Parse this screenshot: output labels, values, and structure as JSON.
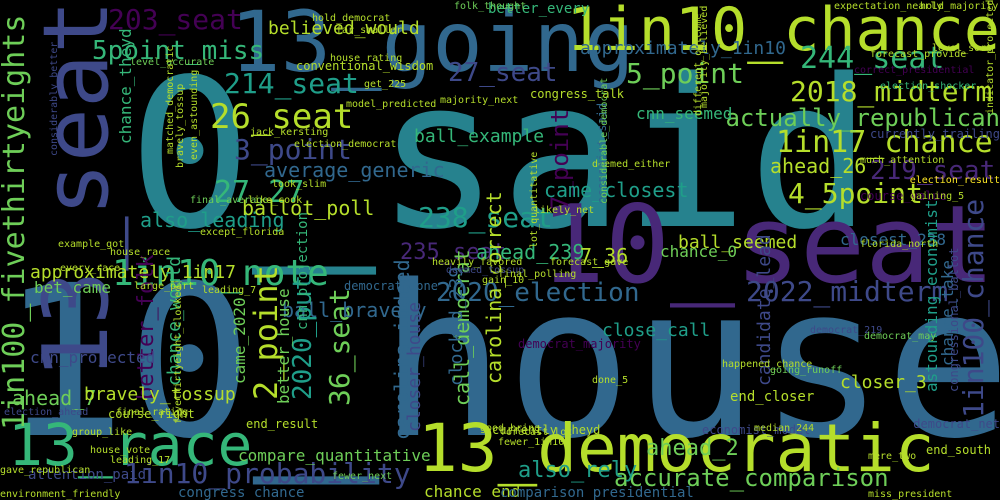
{
  "palette": {
    "background": "#000000",
    "colors": [
      "#440154",
      "#482878",
      "#3e4989",
      "#31688e",
      "#26828e",
      "#1f9e89",
      "#35b779",
      "#6ece58",
      "#b5de2b",
      "#fde725"
    ]
  },
  "words": [
    {
      "text": "0_said",
      "color": "#26828e"
    },
    {
      "text": "10_house",
      "color": "#31688e"
    },
    {
      "text": "10_seat",
      "color": "#482878"
    },
    {
      "text": "13_going",
      "color": "#31688e"
    },
    {
      "text": "1in10_chance",
      "color": "#b5de2b"
    },
    {
      "text": "13_democratic",
      "color": "#b5de2b"
    },
    {
      "text": "13_race",
      "color": "#35b779"
    },
    {
      "text": "13_seat",
      "color": "#3e4989"
    },
    {
      "text": "1in10_note",
      "color": "#35b779"
    },
    {
      "text": "2020_election",
      "color": "#31688e"
    },
    {
      "text": "2022_midterm",
      "color": "#3e4989"
    },
    {
      "text": "1in100_fivethirtyeights",
      "color": "#6ece58"
    },
    {
      "text": "1in100_chance",
      "color": "#3e4989"
    },
    {
      "text": "1in10_probability",
      "color": "#3e4989"
    },
    {
      "text": "accurate_comparison",
      "color": "#6ece58"
    },
    {
      "text": "2018_midterm",
      "color": "#b5de2b"
    },
    {
      "text": "1in17_chance",
      "color": "#b5de2b"
    },
    {
      "text": "244_seat",
      "color": "#35b779"
    },
    {
      "text": "5_point",
      "color": "#6ece58"
    },
    {
      "text": "27_seat",
      "color": "#3e4989"
    },
    {
      "text": "203_seat",
      "color": "#440154"
    },
    {
      "text": "5point_miss",
      "color": "#35b779"
    },
    {
      "text": "214_seat",
      "color": "#1f9e89"
    },
    {
      "text": "26_seat",
      "color": "#b5de2b"
    },
    {
      "text": "3_point",
      "color": "#3e4989"
    },
    {
      "text": "219_seat",
      "color": "#482878"
    },
    {
      "text": "4_5point",
      "color": "#b5de2b"
    },
    {
      "text": "238_seat",
      "color": "#1f9e89"
    },
    {
      "text": "235_seat",
      "color": "#482878"
    },
    {
      "text": "36_seat",
      "color": "#6ece58"
    },
    {
      "text": "2020_put",
      "color": "#1f9e89"
    },
    {
      "text": "2_point",
      "color": "#b5de2b"
    },
    {
      "text": "27 27",
      "color": "#35b779"
    },
    {
      "text": "actually_republican",
      "color": "#6ece58"
    },
    {
      "text": "approximately_1in10",
      "color": "#31688e"
    },
    {
      "text": "approximately_1in17",
      "color": "#b5de2b"
    },
    {
      "text": "ahead_26",
      "color": "#b5de2b"
    },
    {
      "text": "ahead_239",
      "color": "#35b779"
    },
    {
      "text": "ahead_2",
      "color": "#6ece58"
    },
    {
      "text": "ahead_7",
      "color": "#6ece58"
    },
    {
      "text": "also_leading",
      "color": "#1f9e89"
    },
    {
      "text": "also_rely",
      "color": "#1f9e89"
    },
    {
      "text": "7_36",
      "color": "#b5de2b"
    },
    {
      "text": "7_point",
      "color": "#440154"
    },
    {
      "text": "ball_bravely",
      "color": "#31688e"
    },
    {
      "text": "ball_example",
      "color": "#35b779"
    },
    {
      "text": "ball_seemed",
      "color": "#b5de2b"
    },
    {
      "text": "ballot_poll",
      "color": "#b5de2b"
    },
    {
      "text": "average_generic",
      "color": "#31688e"
    },
    {
      "text": "believed_would",
      "color": "#b5de2b"
    },
    {
      "text": "bet_came",
      "color": "#6ece58"
    },
    {
      "text": "better_folk",
      "color": "#440154"
    },
    {
      "text": "better_house",
      "color": "#6ece58"
    },
    {
      "text": "better_every",
      "color": "#35b779"
    },
    {
      "text": "bravely_tossup",
      "color": "#b5de2b"
    },
    {
      "text": "call_democrat",
      "color": "#6ece58"
    },
    {
      "text": "came_closest",
      "color": "#1f9e89"
    },
    {
      "text": "candidate_lead",
      "color": "#3e4989"
    },
    {
      "text": "carolina_correct",
      "color": "#b5de2b"
    },
    {
      "text": "carolina_indeed",
      "color": "#31688e"
    },
    {
      "text": "chance_0",
      "color": "#6ece58"
    },
    {
      "text": "chance_end",
      "color": "#b5de2b"
    },
    {
      "text": "chance_take",
      "color": "#31688e"
    },
    {
      "text": "chance_theyd",
      "color": "#35b779"
    },
    {
      "text": "chance_would",
      "color": "#35b779"
    },
    {
      "text": "clocked_239",
      "color": "#31688e"
    },
    {
      "text": "close_call",
      "color": "#1f9e89"
    },
    {
      "text": "closer_3",
      "color": "#b5de2b"
    },
    {
      "text": "closer_house",
      "color": "#3e4989"
    },
    {
      "text": "closest_238",
      "color": "#31688e"
    },
    {
      "text": "cnn_projected",
      "color": "#3e4989"
    },
    {
      "text": "cnn_projection",
      "color": "#35b779"
    },
    {
      "text": "cnn_seemed",
      "color": "#35b779"
    },
    {
      "text": "came_2020",
      "color": "#6ece58"
    },
    {
      "text": "compare_quantitative",
      "color": "#6ece58"
    },
    {
      "text": "comparison_presidential",
      "color": "#31688e"
    },
    {
      "text": "congress_chance",
      "color": "#31688e"
    },
    {
      "text": "congressional_ballot",
      "color": "#3e4989"
    },
    {
      "text": "correct_presidential",
      "color": "#440154"
    },
    {
      "text": "astounding_economist",
      "color": "#1f9e89"
    },
    {
      "text": "attention_paid",
      "color": "#3e4989"
    },
    {
      "text": "end_closer",
      "color": "#b5de2b"
    },
    {
      "text": "end_result",
      "color": "#b5de2b"
    },
    {
      "text": "end_south",
      "color": "#b5de2b"
    },
    {
      "text": "democrat_219",
      "color": "#3e4989"
    },
    {
      "text": "democrat_may",
      "color": "#6ece58"
    },
    {
      "text": "democrat_majority",
      "color": "#440154"
    },
    {
      "text": "democrat_done",
      "color": "#31688e"
    },
    {
      "text": "democrat_net",
      "color": "#3e4989"
    },
    {
      "text": "deemed_tossup",
      "color": "#3e4989"
    },
    {
      "text": "deemed_either",
      "color": "#b5de2b"
    },
    {
      "text": "course_right",
      "color": "#b5de2b"
    },
    {
      "text": "course_value",
      "color": "#440154"
    },
    {
      "text": "currently_theyd",
      "color": "#b5de2b"
    },
    {
      "text": "currently_trailing",
      "color": "#3e4989"
    },
    {
      "text": "economist_said",
      "color": "#31688e"
    },
    {
      "text": "economist_model",
      "color": "#3e4989"
    },
    {
      "text": "election_democrat",
      "color": "#b5de2b"
    },
    {
      "text": "election_result",
      "color": "#fde725"
    },
    {
      "text": "election_shocker",
      "color": "#35b779"
    },
    {
      "text": "election_ahead",
      "color": "#3e4989"
    },
    {
      "text": "congress_talk",
      "color": "#b5de2b"
    },
    {
      "text": "conventional_wisdom",
      "color": "#b5de2b"
    },
    {
      "text": "considerably_better",
      "color": "#3e4989"
    },
    {
      "text": "considerable_democrat",
      "color": "#6ece58"
    },
    {
      "text": "fewer_next",
      "color": "#6ece58"
    },
    {
      "text": "fewer_1in100",
      "color": "#b5de2b"
    },
    {
      "text": "far_smaller",
      "color": "#b5de2b"
    },
    {
      "text": "final_rating",
      "color": "#b5de2b"
    },
    {
      "text": "final_polling",
      "color": "#b5de2b"
    },
    {
      "text": "final_average",
      "color": "#6ece58"
    },
    {
      "text": "folk_thought",
      "color": "#6ece58"
    },
    {
      "text": "forecast_lot",
      "color": "#b5de2b"
    },
    {
      "text": "forecast_provide",
      "color": "#b5de2b"
    },
    {
      "text": "fivethirtyeight_clocked",
      "color": "#b5de2b"
    },
    {
      "text": "get_225",
      "color": "#b5de2b"
    },
    {
      "text": "going_runoff",
      "color": "#6ece58"
    },
    {
      "text": "good_bring",
      "color": "#b5de2b"
    },
    {
      "text": "group_like",
      "color": "#b5de2b"
    },
    {
      "text": "gave_republican",
      "color": "#b5de2b"
    },
    {
      "text": "environment_friendly",
      "color": "#b5de2b"
    },
    {
      "text": "every_race",
      "color": "#b5de2b"
    },
    {
      "text": "expectation_nearly",
      "color": "#b5de2b"
    },
    {
      "text": "hold_majority",
      "color": "#b5de2b"
    },
    {
      "text": "hold_democrat",
      "color": "#b5de2b"
    },
    {
      "text": "house_rating",
      "color": "#b5de2b"
    },
    {
      "text": "house_race",
      "color": "#b5de2b"
    },
    {
      "text": "house_vote",
      "color": "#b5de2b"
    },
    {
      "text": "happened_chance",
      "color": "#b5de2b"
    },
    {
      "text": "heavily_favored",
      "color": "#b5de2b"
    },
    {
      "text": "leading_7",
      "color": "#b5de2b"
    },
    {
      "text": "leading_17",
      "color": "#b5de2b"
    },
    {
      "text": "level_accurate",
      "color": "#6ece58"
    },
    {
      "text": "level_sort",
      "color": "#b5de2b"
    },
    {
      "text": "lot_quantitative",
      "color": "#b5de2b"
    },
    {
      "text": "likely_net",
      "color": "#b5de2b"
    },
    {
      "text": "like_cook",
      "color": "#b5de2b"
    },
    {
      "text": "look_slim",
      "color": "#b5de2b"
    },
    {
      "text": "majority_next",
      "color": "#b5de2b"
    },
    {
      "text": "majority_believed",
      "color": "#b5de2b"
    },
    {
      "text": "median_244",
      "color": "#b5de2b"
    },
    {
      "text": "model_predicted",
      "color": "#b5de2b"
    },
    {
      "text": "much_attention",
      "color": "#b5de2b"
    },
    {
      "text": "matched_democratic",
      "color": "#b5de2b"
    },
    {
      "text": "mere_two",
      "color": "#b5de2b"
    },
    {
      "text": "miss_president",
      "color": "#b5de2b"
    },
    {
      "text": "indicator_projected",
      "color": "#b5de2b"
    },
    {
      "text": "jack_kersting",
      "color": "#b5de2b"
    },
    {
      "text": "gain_10",
      "color": "#b5de2b"
    },
    {
      "text": "gaining_5",
      "color": "#b5de2b"
    },
    {
      "text": "even_astounding",
      "color": "#b5de2b"
    },
    {
      "text": "except_florida",
      "color": "#b5de2b"
    },
    {
      "text": "florida_north",
      "color": "#b5de2b"
    },
    {
      "text": "example_got",
      "color": "#b5de2b"
    },
    {
      "text": "different_outcome",
      "color": "#b5de2b"
    },
    {
      "text": "done_5",
      "color": "#b5de2b"
    },
    {
      "text": "forecast_gave",
      "color": "#b5de2b"
    },
    {
      "text": "large_part",
      "color": "#b5de2b"
    },
    {
      "text": "bravely_tossup",
      "color": "#b5de2b"
    }
  ]
}
